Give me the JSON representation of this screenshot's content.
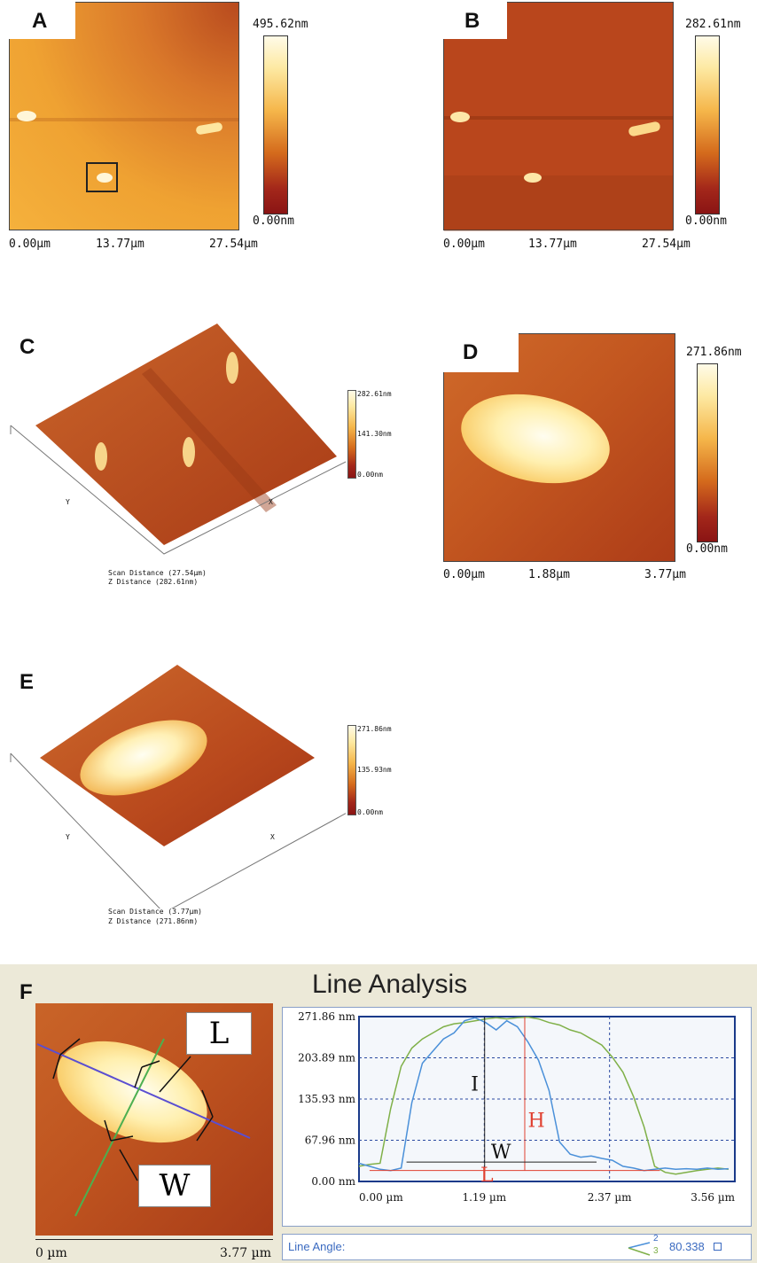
{
  "panels": {
    "A": {
      "label": "A",
      "cbar_max": "495.62nm",
      "cbar_min": "0.00nm",
      "x_ticks": [
        "0.00µm",
        "13.77µm",
        "27.54µm"
      ]
    },
    "B": {
      "label": "B",
      "cbar_max": "282.61nm",
      "cbar_min": "0.00nm",
      "x_ticks": [
        "0.00µm",
        "13.77µm",
        "27.54µm"
      ]
    },
    "C": {
      "label": "C",
      "cbar_labels": [
        "282.61nm",
        "141.30nm",
        "0.00nm"
      ],
      "axis_y": "Y",
      "axis_x": "X",
      "scan_distance": "Scan Distance (27.54µm)",
      "z_distance": "Z Distance (282.61nm)"
    },
    "D": {
      "label": "D",
      "cbar_max": "271.86nm",
      "cbar_min": "0.00nm",
      "x_ticks": [
        "0.00µm",
        "1.88µm",
        "3.77µm"
      ]
    },
    "E": {
      "label": "E",
      "cbar_labels": [
        "271.86nm",
        "135.93nm",
        "0.00nm"
      ],
      "axis_y": "Y",
      "axis_x": "X",
      "scan_distance": "Scan Distance (3.77µm)",
      "z_distance": "Z Distance (271.86nm)"
    },
    "F": {
      "label": "F",
      "title": "Line Analysis",
      "image_labels": {
        "L": "L",
        "W": "W"
      },
      "image_x_ticks": [
        "0 µm",
        "3.77 µm"
      ],
      "line_angle_label": "Line Angle:",
      "line_angle_marks": [
        "2",
        "3"
      ],
      "line_angle_value": "80.338"
    }
  },
  "chart_data": {
    "type": "line",
    "y_ticks": [
      "271.86 nm",
      "203.89 nm",
      "135.93 nm",
      "67.96 nm",
      "0.00 nm"
    ],
    "x_ticks": [
      "0.00 µm",
      "1.19 µm",
      "2.37 µm",
      "3.56 µm"
    ],
    "xlim": [
      0,
      3.56
    ],
    "ylim": [
      0,
      271.86
    ],
    "annotations": [
      "I",
      "H",
      "W",
      "L"
    ],
    "series": [
      {
        "color": "#7fb048",
        "x": [
          0,
          0.1,
          0.2,
          0.3,
          0.4,
          0.5,
          0.6,
          0.7,
          0.8,
          0.9,
          1.0,
          1.1,
          1.2,
          1.3,
          1.4,
          1.5,
          1.6,
          1.7,
          1.8,
          1.9,
          2.0,
          2.1,
          2.2,
          2.3,
          2.4,
          2.5,
          2.6,
          2.7,
          2.8,
          2.9,
          3.0,
          3.1,
          3.2,
          3.3,
          3.4,
          3.5
        ],
        "y": [
          25,
          28,
          30,
          120,
          190,
          220,
          235,
          245,
          255,
          260,
          262,
          265,
          268,
          270,
          268,
          270,
          271,
          268,
          262,
          258,
          250,
          245,
          235,
          225,
          205,
          180,
          140,
          90,
          25,
          15,
          12,
          15,
          18,
          20,
          22,
          20
        ]
      },
      {
        "color": "#4a90d9",
        "x": [
          0,
          0.1,
          0.2,
          0.3,
          0.4,
          0.5,
          0.6,
          0.7,
          0.8,
          0.9,
          1.0,
          1.1,
          1.2,
          1.3,
          1.4,
          1.5,
          1.6,
          1.7,
          1.8,
          1.9,
          2.0,
          2.1,
          2.2,
          2.3,
          2.4,
          2.5,
          2.6,
          2.7,
          2.8,
          2.9,
          3.0,
          3.1,
          3.2,
          3.3,
          3.4,
          3.5
        ],
        "y": [
          30,
          25,
          20,
          18,
          22,
          130,
          195,
          215,
          235,
          245,
          265,
          270,
          262,
          250,
          265,
          255,
          230,
          200,
          150,
          65,
          45,
          40,
          42,
          38,
          35,
          25,
          22,
          18,
          20,
          22,
          20,
          21,
          20,
          22,
          20,
          21
        ]
      }
    ]
  },
  "colors": {
    "chart_border": "#1a3a8a",
    "panel_bg": "#ece9d8",
    "green": "#7fb048",
    "blue": "#4a90d9",
    "red": "#e04030"
  }
}
